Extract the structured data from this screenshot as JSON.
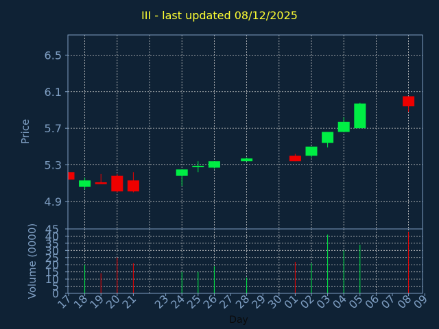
{
  "title": "III - last updated 08/12/2025",
  "colors": {
    "background": "#0f2235",
    "title": "#ffff33",
    "up": "#00ee44",
    "down": "#ee0000",
    "axis_text": "#7f9fc3",
    "grid": "#c8c8c8",
    "frame": "#7f9fc3"
  },
  "chart_data": [
    {
      "type": "candlestick",
      "ylabel": "Price",
      "ylim": [
        4.6,
        6.72
      ],
      "yticks": [
        "4.9",
        "5.3",
        "5.7",
        "6.1",
        "6.5"
      ],
      "grid": true,
      "x": [
        "17",
        "18",
        "19",
        "20",
        "21",
        "24",
        "25",
        "26",
        "28",
        "01",
        "02",
        "03",
        "04",
        "05",
        "08"
      ],
      "open": [
        5.22,
        5.06,
        5.11,
        5.18,
        5.13,
        5.18,
        5.28,
        5.27,
        5.34,
        5.4,
        5.4,
        5.54,
        5.66,
        5.7,
        6.05
      ],
      "high": [
        5.22,
        5.16,
        5.2,
        5.2,
        5.22,
        5.24,
        5.34,
        5.34,
        5.38,
        5.42,
        5.5,
        5.66,
        5.82,
        5.98,
        6.05
      ],
      "low": [
        5.14,
        5.03,
        5.09,
        5.0,
        5.0,
        5.07,
        5.22,
        5.26,
        5.34,
        5.34,
        5.38,
        5.49,
        5.66,
        5.7,
        5.88
      ],
      "close": [
        5.14,
        5.13,
        5.09,
        5.01,
        5.01,
        5.25,
        5.29,
        5.34,
        5.37,
        5.34,
        5.5,
        5.66,
        5.77,
        5.97,
        5.94
      ]
    },
    {
      "type": "bar",
      "xlabel": "Day",
      "ylabel": "Volume (0000)",
      "ylim": [
        0,
        45
      ],
      "yticks": [
        "0",
        "5",
        "10",
        "15",
        "20",
        "25",
        "30",
        "35",
        "40",
        "45"
      ],
      "grid": true,
      "categories": [
        "17",
        "18",
        "19",
        "20",
        "21",
        "24",
        "25",
        "26",
        "28",
        "01",
        "02",
        "03",
        "04",
        "05",
        "08"
      ],
      "values": [
        0,
        20,
        14,
        25,
        21,
        15,
        15,
        19,
        11,
        22,
        21,
        41,
        30,
        34,
        43
      ]
    }
  ],
  "x_axis": {
    "labels": [
      "17",
      "18",
      "19",
      "20",
      "21",
      "23",
      "24",
      "25",
      "26",
      "27",
      "28",
      "29",
      "30",
      "01",
      "02",
      "03",
      "04",
      "05",
      "06",
      "07",
      "08",
      "09"
    ],
    "positions": [
      0,
      1,
      2,
      3,
      4,
      6,
      7,
      8,
      9,
      10,
      11,
      12,
      13,
      14,
      15,
      16,
      17,
      18,
      19,
      20,
      21,
      22
    ]
  }
}
